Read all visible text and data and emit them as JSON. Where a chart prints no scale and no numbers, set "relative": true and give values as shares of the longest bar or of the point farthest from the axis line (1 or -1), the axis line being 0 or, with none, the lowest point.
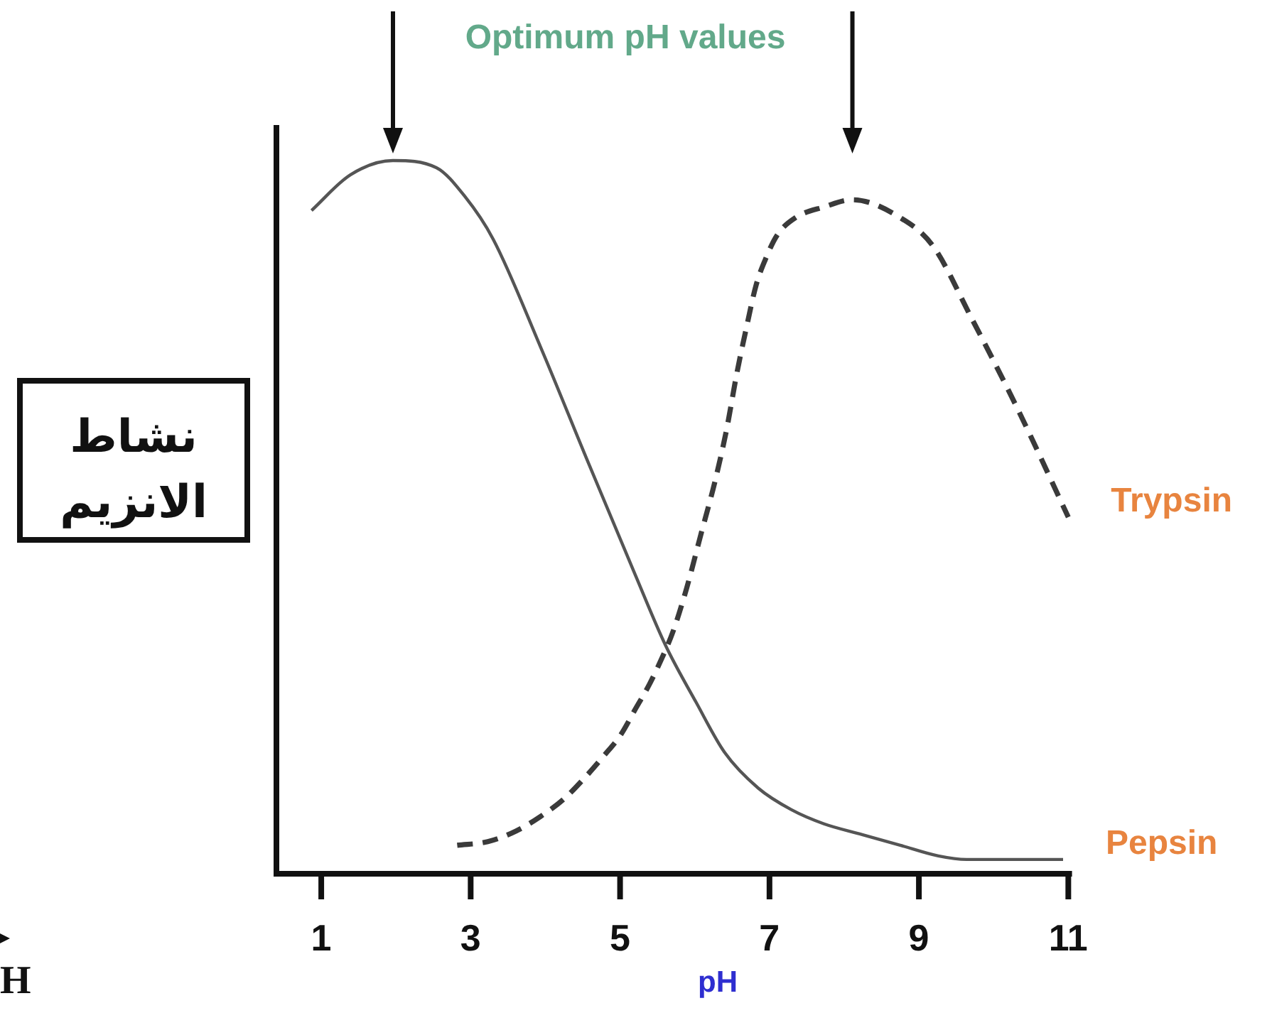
{
  "chart_data": {
    "type": "line",
    "title": "Optimum pH values",
    "xlabel": "pH",
    "ylabel": "نشاط الانزيم",
    "relative": true,
    "xlim": [
      0.4,
      11.05
    ],
    "xticks": [
      1,
      3,
      5,
      7,
      9,
      11
    ],
    "annotations": [
      "H"
    ],
    "series": [
      {
        "name": "Pepsin",
        "color": "#555555",
        "line_style": "solid",
        "x": [
          0.87,
          1.39,
          1.96,
          2.54,
          2.92,
          3.3,
          3.93,
          4.56,
          5.2,
          5.61,
          6.02,
          6.4,
          6.85,
          7.29,
          7.73,
          8.24,
          8.75,
          9.26,
          9.64,
          10.14,
          10.93
        ],
        "values": [
          0.93,
          0.98,
          1.0,
          0.99,
          0.95,
          0.89,
          0.74,
          0.58,
          0.42,
          0.32,
          0.24,
          0.17,
          0.12,
          0.09,
          0.07,
          0.055,
          0.04,
          0.025,
          0.02,
          0.02,
          0.02
        ]
      },
      {
        "name": "Trypsin",
        "color": "#3a3a3a",
        "line_style": "dashed",
        "x": [
          2.82,
          3.23,
          3.61,
          3.93,
          4.25,
          4.53,
          4.78,
          5.01,
          5.2,
          5.39,
          5.55,
          5.71,
          5.89,
          6.08,
          6.27,
          6.43,
          6.56,
          6.69,
          6.82,
          6.94,
          7.1,
          7.35,
          7.73,
          8.11,
          8.75,
          9.19,
          9.7,
          10.33,
          11.0
        ],
        "values": [
          0.04,
          0.045,
          0.06,
          0.08,
          0.105,
          0.135,
          0.165,
          0.195,
          0.23,
          0.265,
          0.3,
          0.34,
          0.4,
          0.475,
          0.55,
          0.625,
          0.7,
          0.765,
          0.825,
          0.86,
          0.895,
          0.92,
          0.935,
          0.945,
          0.92,
          0.88,
          0.78,
          0.65,
          0.5
        ]
      }
    ]
  }
}
